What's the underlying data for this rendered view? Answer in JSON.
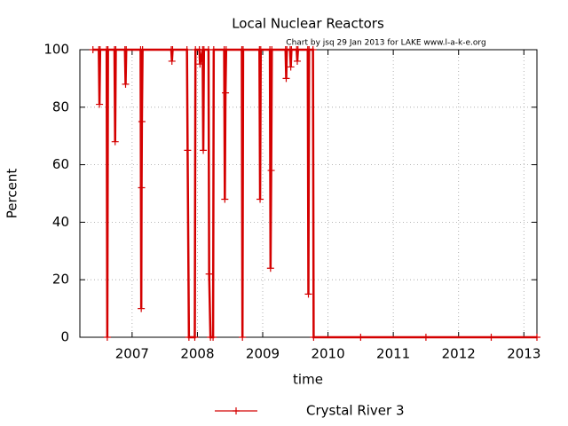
{
  "chart_data": {
    "type": "line",
    "title": "Local Nuclear Reactors",
    "annotation": "Chart by jsq 29 Jan 2013 for LAKE www.l-a-k-e.org",
    "x_label": "time",
    "y_label": "Percent",
    "xlim": [
      2006.2,
      2013.2
    ],
    "xticks": [
      2007,
      2008,
      2009,
      2010,
      2011,
      2012,
      2013
    ],
    "ylim": [
      0,
      100
    ],
    "yticks": [
      0,
      20,
      40,
      60,
      80,
      100
    ],
    "grid": true,
    "legend": "bottom",
    "series": [
      {
        "name": "Crystal River 3",
        "color": "#d40000",
        "x": [
          2006.4,
          2006.49,
          2006.5,
          2006.51,
          2006.61,
          2006.62,
          2006.63,
          2006.73,
          2006.74,
          2006.75,
          2006.89,
          2006.9,
          2006.91,
          2007.13,
          2007.14,
          2007.145,
          2007.15,
          2007.16,
          2007.6,
          2007.61,
          2007.62,
          2007.84,
          2007.85,
          2007.87,
          2007.96,
          2007.97,
          2008.03,
          2008.04,
          2008.08,
          2008.09,
          2008.1,
          2008.17,
          2008.18,
          2008.2,
          2008.24,
          2008.25,
          2008.41,
          2008.42,
          2008.43,
          2008.44,
          2008.68,
          2008.69,
          2008.7,
          2008.95,
          2008.96,
          2008.97,
          2009.11,
          2009.12,
          2009.13,
          2009.14,
          2009.35,
          2009.36,
          2009.37,
          2009.42,
          2009.43,
          2009.44,
          2009.52,
          2009.53,
          2009.54,
          2009.69,
          2009.7,
          2009.71,
          2009.77,
          2009.78,
          2010.5,
          2011.5,
          2012.5,
          2013.2
        ],
        "values": [
          100,
          100,
          81,
          100,
          100,
          0,
          100,
          100,
          68,
          100,
          100,
          88,
          100,
          100,
          10,
          52,
          75,
          100,
          100,
          96,
          100,
          100,
          65,
          0,
          0,
          100,
          100,
          95,
          100,
          65,
          100,
          100,
          22,
          0,
          0,
          100,
          100,
          48,
          85,
          100,
          100,
          0,
          100,
          100,
          48,
          100,
          100,
          24,
          58,
          100,
          100,
          90,
          100,
          100,
          94,
          100,
          100,
          96,
          100,
          100,
          15,
          100,
          100,
          0,
          0,
          0,
          0,
          0
        ]
      }
    ]
  }
}
